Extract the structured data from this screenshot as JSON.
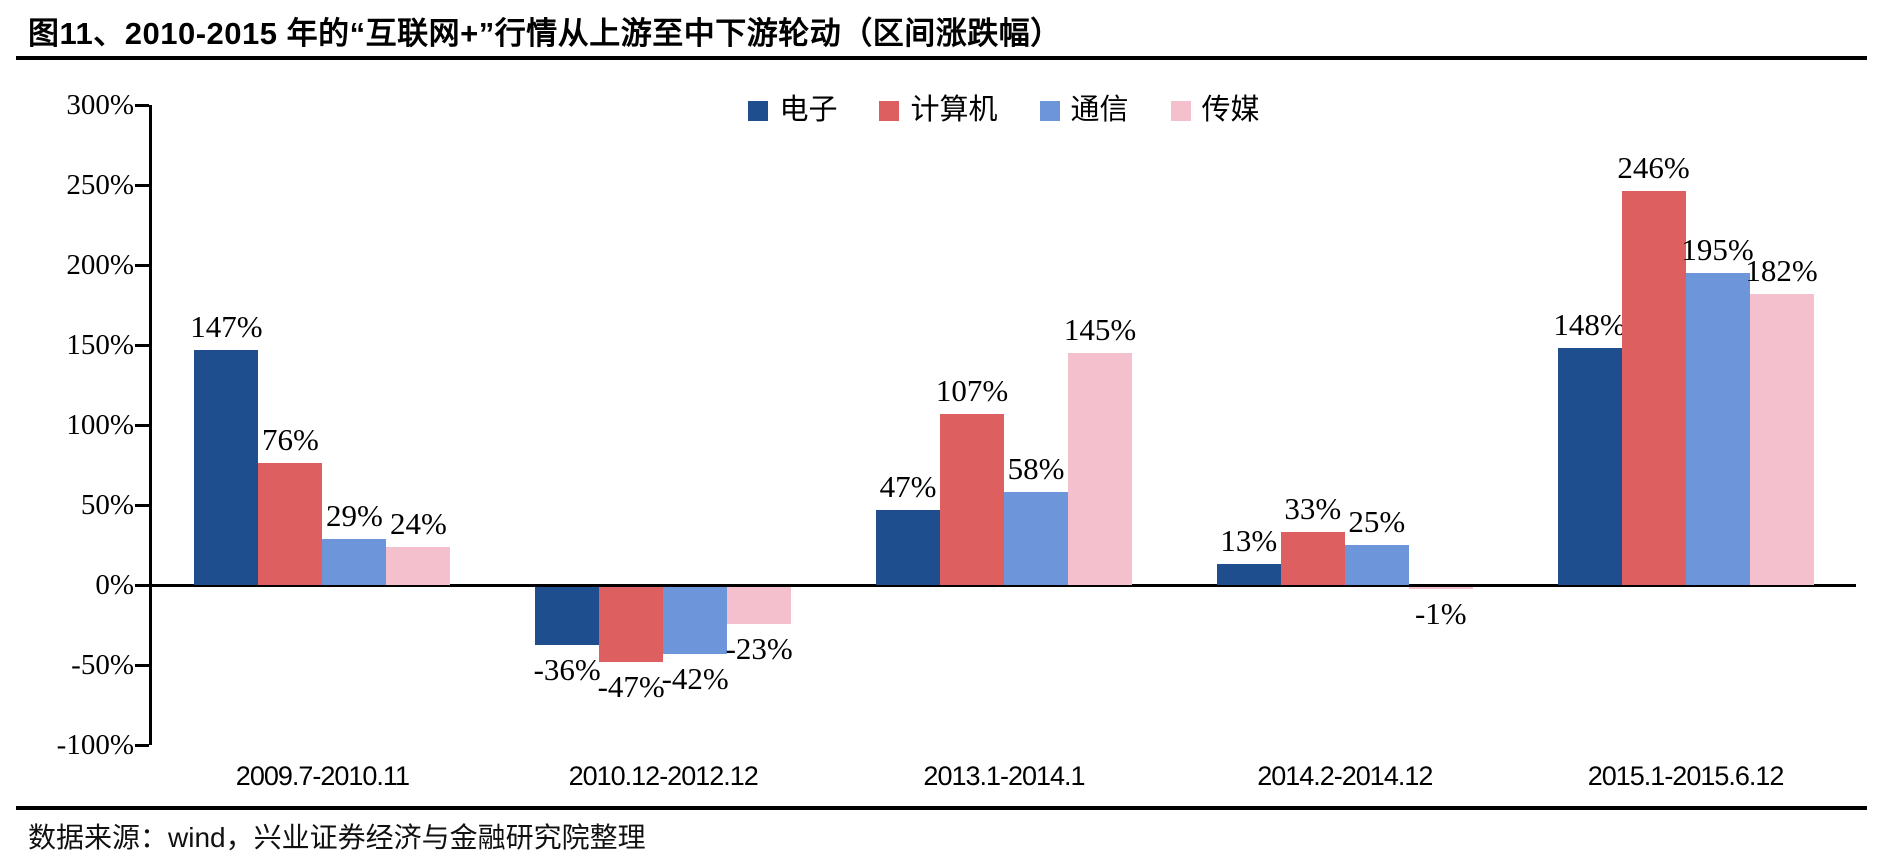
{
  "page": {
    "title": "图11、2010-2015 年的“互联网+”行情从上游至中下游轮动（区间涨跌幅）",
    "source": "数据来源：wind，兴业证券经济与金融研究院整理"
  },
  "chart_data": {
    "type": "bar",
    "title": "图11、2010-2015 年的“互联网+”行情从上游至中下游轮动（区间涨跌幅）",
    "categories": [
      "2009.7-2010.11",
      "2010.12-2012.12",
      "2013.1-2014.1",
      "2014.2-2014.12",
      "2015.1-2015.6.12"
    ],
    "series": [
      {
        "name": "电子",
        "color": "#1F4E8F",
        "values": [
          147,
          -36,
          47,
          13,
          148
        ]
      },
      {
        "name": "计算机",
        "color": "#DD5F5F",
        "values": [
          76,
          -47,
          107,
          33,
          246
        ]
      },
      {
        "name": "通信",
        "color": "#6C96D9",
        "values": [
          29,
          -42,
          58,
          25,
          195
        ]
      },
      {
        "name": "传媒",
        "color": "#F5C0CD",
        "values": [
          24,
          -23,
          145,
          -1,
          182
        ]
      }
    ],
    "xlabel": "",
    "ylabel": "",
    "ylim": [
      -100,
      300
    ],
    "yticks": [
      300,
      250,
      200,
      150,
      100,
      50,
      0,
      -50,
      -100
    ],
    "ytick_format": "{v}%",
    "value_label_format": "{v}%",
    "grid": false,
    "legend_position": "top-center",
    "axis_color": "#000000",
    "background": "#ffffff"
  }
}
